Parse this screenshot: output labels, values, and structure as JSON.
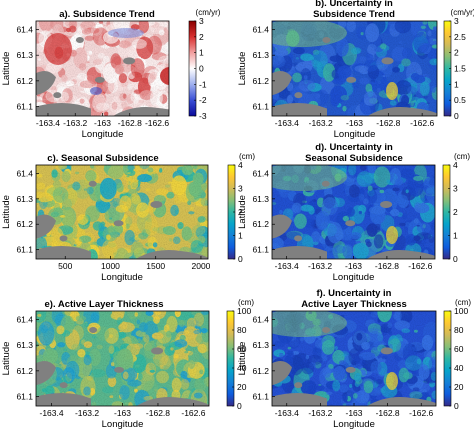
{
  "colors": {
    "parula": [
      "#352a87",
      "#0f5cdd",
      "#1481d6",
      "#06a4ca",
      "#2eb7a4",
      "#87bf77",
      "#d1bb59",
      "#fec832",
      "#f9fb0e"
    ],
    "diverging": [
      "#0a0a9a",
      "#3a4fd6",
      "#9fb0ee",
      "#ffffff",
      "#f2a0a0",
      "#d83030",
      "#8a0000"
    ],
    "water": "#808080"
  },
  "panels": [
    {
      "id": "a",
      "title_lines": [
        "a). Subsidence Trend"
      ],
      "unit": "(cm/yr)",
      "cbar_type": "diverging",
      "cbar_ticks": [
        "3",
        "2",
        "1",
        "0",
        "-1",
        "-2",
        "-3"
      ],
      "ylabel": "Latitude",
      "yticks": [
        "61.4",
        "61.3",
        "61.2",
        "61.1"
      ],
      "xlabel": "Longitude",
      "xticks": [
        "-163.4",
        "-163.2",
        "-163",
        "-162.8",
        "-162.6"
      ]
    },
    {
      "id": "b",
      "title_lines": [
        "b). Uncertainty in",
        "Subsidence Trend"
      ],
      "unit": "(cm/yr)",
      "cbar_type": "parula",
      "cbar_ticks": [
        "3",
        "2.5",
        "2",
        "1.5",
        "1",
        "0.5",
        "0"
      ],
      "ylabel": "Latitude",
      "yticks": [
        "61.4",
        "61.3",
        "61.2",
        "61.1"
      ],
      "xlabel": "Longitude",
      "xticks": [
        "-163.4",
        "-163.2",
        "-163",
        "-162.8",
        "-162.6"
      ]
    },
    {
      "id": "c",
      "title_lines": [
        "c). Seasonal Subsidence"
      ],
      "unit": "(cm)",
      "cbar_type": "parula",
      "cbar_ticks": [
        "4",
        "3",
        "2",
        "1",
        "0"
      ],
      "ylabel": "Latitude",
      "yticks": [
        "61.4",
        "61.3",
        "61.2",
        "61.1"
      ],
      "xlabel": "Longitude",
      "xticks": [
        "500",
        "1000",
        "1500",
        "2000"
      ]
    },
    {
      "id": "d",
      "title_lines": [
        "d). Uncertainty in",
        "Seasonal Subsidence"
      ],
      "unit": "(cm)",
      "cbar_type": "parula",
      "cbar_ticks": [
        "4",
        "3",
        "2",
        "1",
        "0"
      ],
      "ylabel": "Latitude",
      "yticks": [
        "61.4",
        "61.3",
        "61.2",
        "61.1"
      ],
      "xlabel": "Longitude",
      "xticks": [
        "-163.4",
        "-163.2",
        "-163",
        "-162.8",
        "-162.6"
      ]
    },
    {
      "id": "e",
      "title_lines": [
        "e). Active Layer Thickness"
      ],
      "unit": "(cm)",
      "cbar_type": "parula",
      "cbar_ticks": [
        "100",
        "80",
        "60",
        "40",
        "20",
        "0"
      ],
      "ylabel": "Latitude",
      "yticks": [
        "61.4",
        "61.3",
        "61.2",
        "61.1"
      ],
      "xlabel": "Longitude",
      "xticks": [
        "-163.4",
        "-163.2",
        "-163",
        "-162.8",
        "-162.6"
      ]
    },
    {
      "id": "f",
      "title_lines": [
        "f). Uncertainty in",
        "Active Layer Thickness"
      ],
      "unit": "(cm)",
      "cbar_type": "parula",
      "cbar_ticks": [
        "100",
        "80",
        "60",
        "40",
        "20",
        "0"
      ],
      "ylabel": "Latitude",
      "yticks": [
        "61.4",
        "61.3",
        "61.2",
        "61.1"
      ],
      "xlabel": "Longitude",
      "xticks": [
        "-163.4",
        "-163.2",
        "-163",
        "-162.8",
        "-162.6"
      ]
    }
  ]
}
